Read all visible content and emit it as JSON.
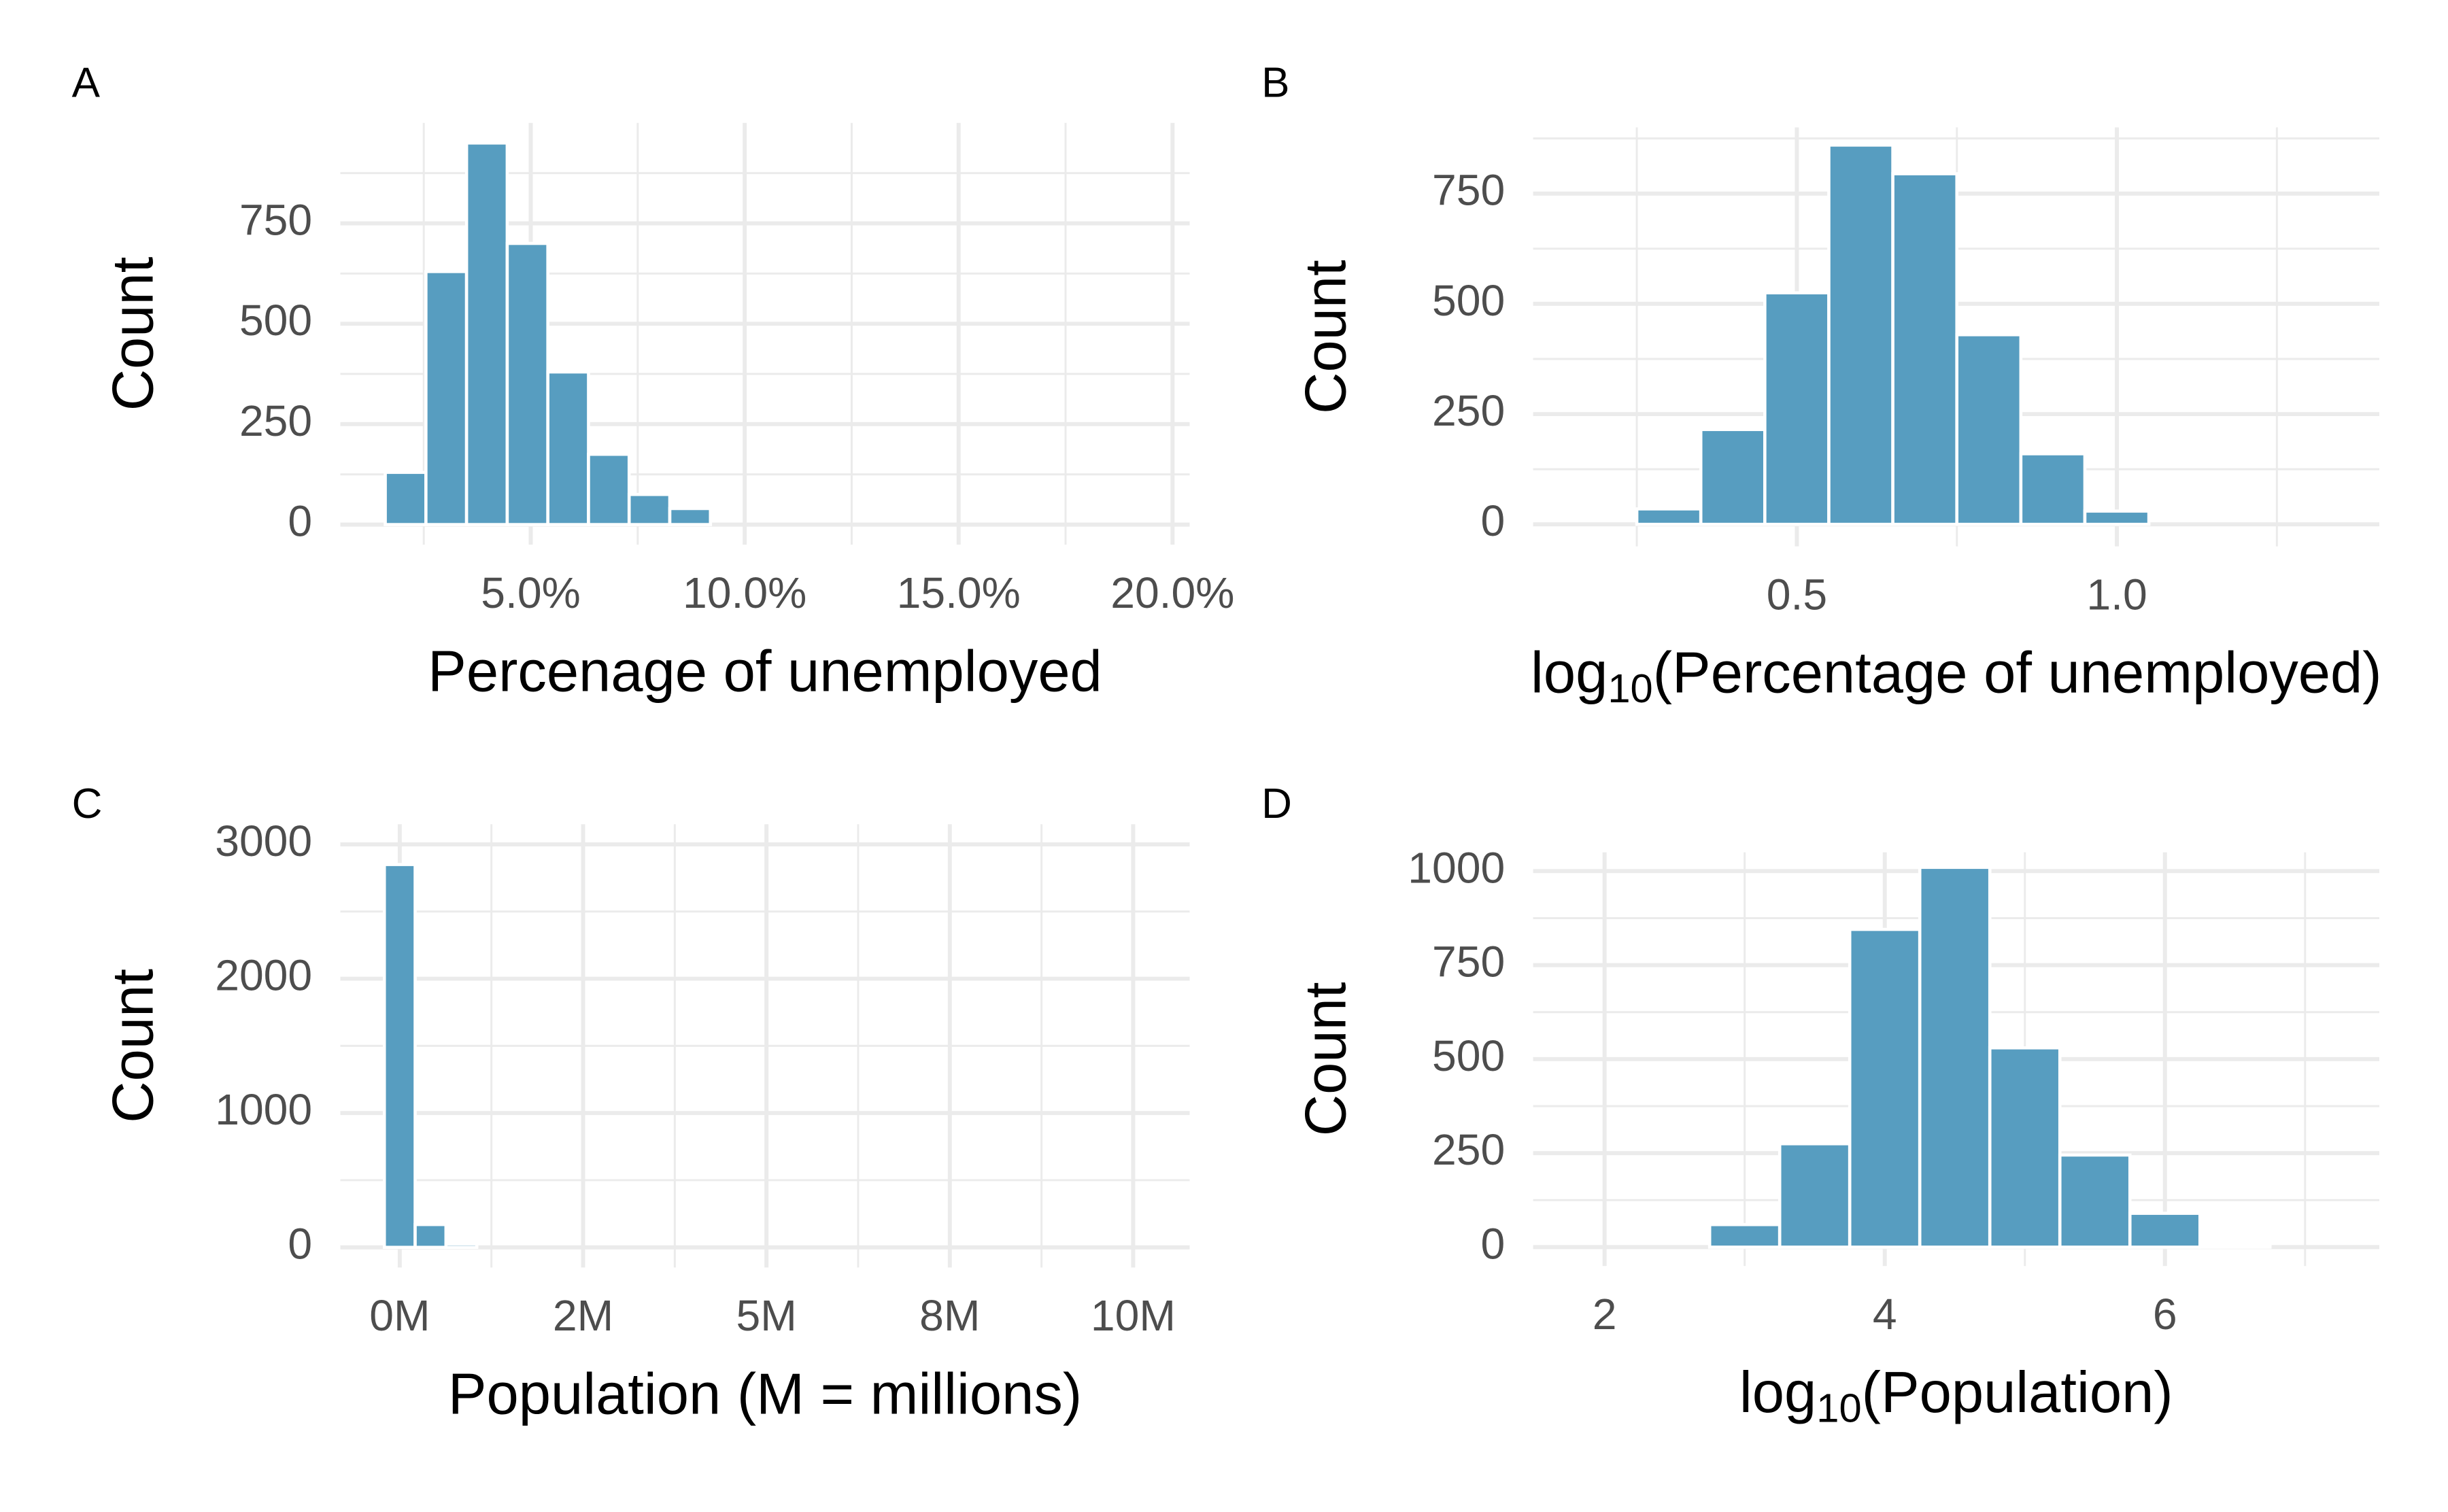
{
  "chart_data": [
    {
      "type": "histogram",
      "label": "A",
      "xlabel": "Percenage of unemployed",
      "ylabel": "Count",
      "color": "#579dc0",
      "grid": true,
      "bins": [
        1.6,
        2.55,
        3.5,
        4.45,
        5.4,
        6.35,
        7.3,
        8.25,
        9.2
      ],
      "counts": [
        130,
        630,
        950,
        700,
        380,
        175,
        75,
        40
      ],
      "xlim": [
        0.55,
        20.4
      ],
      "ylim": [
        -50,
        1000
      ],
      "xticks": [
        {
          "value": 5,
          "label": "5.0%"
        },
        {
          "value": 10,
          "label": "10.0%"
        },
        {
          "value": 15,
          "label": "15.0%"
        },
        {
          "value": 20,
          "label": "20.0%"
        }
      ],
      "yticks": [
        0,
        250,
        500,
        750
      ]
    },
    {
      "type": "histogram",
      "label": "B",
      "xlabel": [
        "log",
        "10",
        "(Percentage of unemployed)"
      ],
      "ylabel": "Count",
      "color": "#579dc0",
      "grid": true,
      "bins": [
        0.25,
        0.35,
        0.45,
        0.55,
        0.65,
        0.75,
        0.85,
        0.95,
        1.05
      ],
      "counts": [
        35,
        215,
        525,
        860,
        795,
        430,
        160,
        30
      ],
      "xlim": [
        0.088,
        1.41
      ],
      "ylim": [
        -50,
        900
      ],
      "xticks": [
        0.5,
        {
          "value": 1,
          "label": "1.0"
        }
      ],
      "yticks": [
        0,
        250,
        500,
        750
      ]
    },
    {
      "type": "histogram",
      "label": "C",
      "xlabel": "Population (M = millions)",
      "ylabel": "Count",
      "color": "#579dc0",
      "grid": true,
      "bins": [
        -0.21,
        0.21,
        0.63,
        1.05
      ],
      "counts": [
        2850,
        170,
        25
      ],
      "xlim": [
        -0.81,
        10.77
      ],
      "ylim": [
        -150,
        3150
      ],
      "xticks": [
        {
          "value": 0,
          "label": "0M"
        },
        {
          "value": 2.5,
          "label": "2M"
        },
        {
          "value": 5,
          "label": "5M"
        },
        {
          "value": 7.5,
          "label": "8M"
        },
        {
          "value": 10,
          "label": "10M"
        }
      ],
      "yticks": [
        0,
        1000,
        2000,
        3000
      ]
    },
    {
      "type": "histogram",
      "label": "D",
      "xlabel": [
        "log",
        "10",
        "(Population)"
      ],
      "ylabel": "Count",
      "color": "#579dc0",
      "grid": true,
      "bins": [
        2.75,
        3.25,
        3.75,
        4.25,
        4.75,
        5.25,
        5.75,
        6.25,
        6.75
      ],
      "counts": [
        60,
        275,
        845,
        1010,
        530,
        245,
        90,
        5
      ],
      "xlim": [
        1.49,
        7.53
      ],
      "ylim": [
        -50,
        1050
      ],
      "xticks": [
        2,
        4,
        6
      ],
      "yticks": [
        0,
        250,
        500,
        750,
        1000
      ]
    }
  ]
}
